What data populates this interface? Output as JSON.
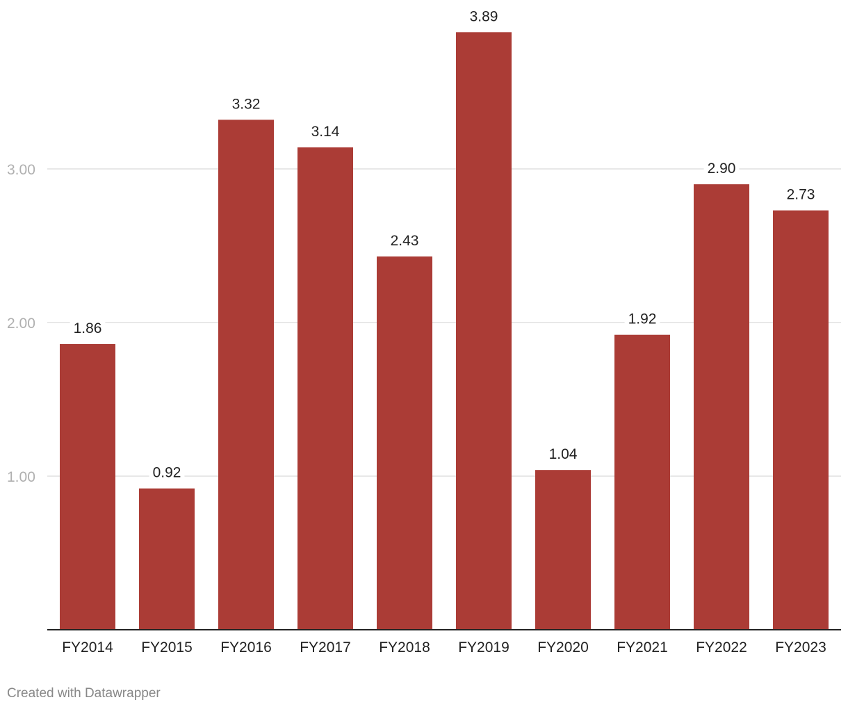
{
  "chart_data": {
    "type": "bar",
    "title": "",
    "xlabel": "",
    "ylabel": "",
    "categories": [
      "FY2014",
      "FY2015",
      "FY2016",
      "FY2017",
      "FY2018",
      "FY2019",
      "FY2020",
      "FY2021",
      "FY2022",
      "FY2023"
    ],
    "values": [
      1.86,
      0.92,
      3.32,
      3.14,
      2.43,
      3.89,
      1.04,
      1.92,
      2.9,
      2.73
    ],
    "value_labels": [
      "1.86",
      "0.92",
      "3.32",
      "3.14",
      "2.43",
      "3.89",
      "1.04",
      "1.92",
      "2.90",
      "2.73"
    ],
    "ylim": [
      0,
      4
    ],
    "yticks": [
      1,
      2,
      3
    ],
    "ytick_labels": [
      "1.00",
      "2.00",
      "3.00"
    ],
    "grid": true,
    "legend": "none",
    "colors": {
      "bar": "#ab3c36",
      "grid": "#e0e0e0",
      "baseline": "#222222"
    }
  },
  "footer": {
    "credit": "Created with Datawrapper"
  }
}
